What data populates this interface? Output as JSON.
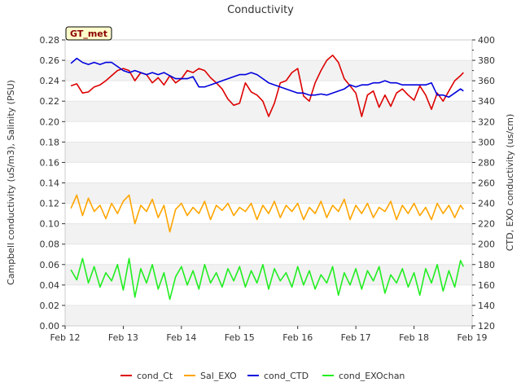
{
  "chart_data": {
    "type": "line",
    "title": "Conductivity",
    "station_label": "GT_met",
    "ylabel_left": "Campbell conductivity (uS/m3), Salinity (PSU)",
    "ylabel_right": "CTD, EXO conductivity (us/cm)",
    "xlim": [
      0,
      7
    ],
    "x_ticks": [
      {
        "x": 0,
        "label": "Feb 12"
      },
      {
        "x": 1,
        "label": "Feb 13"
      },
      {
        "x": 2,
        "label": "Feb 14"
      },
      {
        "x": 3,
        "label": "Feb 15"
      },
      {
        "x": 4,
        "label": "Feb 16"
      },
      {
        "x": 5,
        "label": "Feb 17"
      },
      {
        "x": 6,
        "label": "Feb 18"
      },
      {
        "x": 7,
        "label": "Feb 19"
      }
    ],
    "ylim_left": [
      0,
      0.28
    ],
    "y_ticks_left": [
      0.0,
      0.02,
      0.04,
      0.06,
      0.08,
      0.1,
      0.12,
      0.14,
      0.16,
      0.18,
      0.2,
      0.22,
      0.24,
      0.26,
      0.28
    ],
    "ylim_right": [
      120,
      400
    ],
    "y_ticks_right": [
      120,
      140,
      160,
      180,
      200,
      220,
      240,
      260,
      280,
      300,
      320,
      340,
      360,
      380,
      400
    ],
    "grid": "horizontal bands",
    "legend_position": "bottom",
    "series": [
      {
        "name": "cond_Ct",
        "color": "#dd0000",
        "axis": "left",
        "x": [
          0.1,
          0.2,
          0.3,
          0.4,
          0.5,
          0.6,
          0.7,
          0.8,
          0.9,
          1.0,
          1.1,
          1.2,
          1.3,
          1.4,
          1.5,
          1.6,
          1.7,
          1.8,
          1.9,
          2.0,
          2.1,
          2.2,
          2.3,
          2.4,
          2.5,
          2.6,
          2.7,
          2.8,
          2.9,
          3.0,
          3.1,
          3.2,
          3.3,
          3.4,
          3.5,
          3.6,
          3.7,
          3.8,
          3.9,
          4.0,
          4.1,
          4.2,
          4.3,
          4.4,
          4.5,
          4.6,
          4.7,
          4.8,
          4.9,
          5.0,
          5.1,
          5.2,
          5.3,
          5.4,
          5.5,
          5.6,
          5.7,
          5.8,
          5.9,
          6.0,
          6.1,
          6.2,
          6.3,
          6.4,
          6.5,
          6.6,
          6.7,
          6.8,
          6.85
        ],
        "y": [
          0.235,
          0.237,
          0.228,
          0.229,
          0.234,
          0.236,
          0.24,
          0.245,
          0.25,
          0.252,
          0.25,
          0.24,
          0.248,
          0.246,
          0.238,
          0.243,
          0.236,
          0.245,
          0.238,
          0.242,
          0.25,
          0.248,
          0.252,
          0.25,
          0.243,
          0.238,
          0.232,
          0.222,
          0.216,
          0.218,
          0.238,
          0.229,
          0.226,
          0.22,
          0.205,
          0.218,
          0.238,
          0.24,
          0.248,
          0.252,
          0.225,
          0.22,
          0.238,
          0.25,
          0.26,
          0.265,
          0.258,
          0.242,
          0.235,
          0.228,
          0.205,
          0.226,
          0.23,
          0.214,
          0.226,
          0.215,
          0.228,
          0.232,
          0.226,
          0.221,
          0.235,
          0.226,
          0.212,
          0.228,
          0.22,
          0.23,
          0.24,
          0.245,
          0.248
        ]
      },
      {
        "name": "Sal_EXO",
        "color": "#ffa500",
        "axis": "left",
        "x": [
          0.1,
          0.2,
          0.3,
          0.4,
          0.5,
          0.6,
          0.7,
          0.8,
          0.9,
          1.0,
          1.1,
          1.2,
          1.3,
          1.4,
          1.5,
          1.6,
          1.7,
          1.8,
          1.9,
          2.0,
          2.1,
          2.2,
          2.3,
          2.4,
          2.5,
          2.6,
          2.7,
          2.8,
          2.9,
          3.0,
          3.1,
          3.2,
          3.3,
          3.4,
          3.5,
          3.6,
          3.7,
          3.8,
          3.9,
          4.0,
          4.1,
          4.2,
          4.3,
          4.4,
          4.5,
          4.6,
          4.7,
          4.8,
          4.9,
          5.0,
          5.1,
          5.2,
          5.3,
          5.4,
          5.5,
          5.6,
          5.7,
          5.8,
          5.9,
          6.0,
          6.1,
          6.2,
          6.3,
          6.4,
          6.5,
          6.6,
          6.7,
          6.8,
          6.85
        ],
        "y": [
          0.115,
          0.128,
          0.108,
          0.125,
          0.112,
          0.118,
          0.105,
          0.12,
          0.11,
          0.122,
          0.128,
          0.1,
          0.118,
          0.112,
          0.124,
          0.106,
          0.118,
          0.092,
          0.114,
          0.12,
          0.108,
          0.116,
          0.11,
          0.122,
          0.104,
          0.118,
          0.113,
          0.12,
          0.108,
          0.116,
          0.112,
          0.12,
          0.104,
          0.118,
          0.11,
          0.122,
          0.106,
          0.118,
          0.112,
          0.12,
          0.104,
          0.116,
          0.11,
          0.122,
          0.106,
          0.118,
          0.112,
          0.124,
          0.104,
          0.118,
          0.11,
          0.12,
          0.106,
          0.116,
          0.112,
          0.122,
          0.104,
          0.118,
          0.11,
          0.12,
          0.108,
          0.116,
          0.104,
          0.12,
          0.11,
          0.118,
          0.106,
          0.118,
          0.114
        ]
      },
      {
        "name": "cond_CTD",
        "color": "#0000dd",
        "axis": "right",
        "x": [
          0.1,
          0.2,
          0.3,
          0.4,
          0.5,
          0.6,
          0.7,
          0.8,
          0.9,
          1.0,
          1.1,
          1.2,
          1.3,
          1.4,
          1.5,
          1.6,
          1.7,
          1.8,
          1.9,
          2.0,
          2.1,
          2.2,
          2.3,
          2.4,
          2.5,
          2.6,
          2.7,
          2.8,
          2.9,
          3.0,
          3.1,
          3.2,
          3.3,
          3.4,
          3.5,
          3.6,
          3.7,
          3.8,
          3.9,
          4.0,
          4.1,
          4.2,
          4.3,
          4.4,
          4.5,
          4.6,
          4.7,
          4.8,
          4.9,
          5.0,
          5.1,
          5.2,
          5.3,
          5.4,
          5.5,
          5.6,
          5.7,
          5.8,
          5.9,
          6.0,
          6.1,
          6.2,
          6.3,
          6.4,
          6.5,
          6.6,
          6.7,
          6.8,
          6.85
        ],
        "y": [
          377,
          382,
          378,
          376,
          378,
          376,
          378,
          378,
          374,
          370,
          368,
          370,
          368,
          366,
          368,
          366,
          368,
          365,
          362,
          362,
          362,
          364,
          354,
          354,
          356,
          358,
          360,
          362,
          364,
          366,
          366,
          368,
          366,
          362,
          358,
          356,
          354,
          352,
          350,
          348,
          348,
          346,
          346,
          347,
          346,
          348,
          350,
          352,
          356,
          354,
          356,
          356,
          358,
          358,
          360,
          358,
          358,
          356,
          356,
          356,
          356,
          356,
          358,
          346,
          346,
          344,
          348,
          352,
          350
        ]
      },
      {
        "name": "cond_EXOchan",
        "color": "#22ee22",
        "axis": "right",
        "x": [
          0.1,
          0.2,
          0.3,
          0.4,
          0.5,
          0.6,
          0.7,
          0.8,
          0.9,
          1.0,
          1.1,
          1.2,
          1.3,
          1.4,
          1.5,
          1.6,
          1.7,
          1.8,
          1.9,
          2.0,
          2.1,
          2.2,
          2.3,
          2.4,
          2.5,
          2.6,
          2.7,
          2.8,
          2.9,
          3.0,
          3.1,
          3.2,
          3.3,
          3.4,
          3.5,
          3.6,
          3.7,
          3.8,
          3.9,
          4.0,
          4.1,
          4.2,
          4.3,
          4.4,
          4.5,
          4.6,
          4.7,
          4.8,
          4.9,
          5.0,
          5.1,
          5.2,
          5.3,
          5.4,
          5.5,
          5.6,
          5.7,
          5.8,
          5.9,
          6.0,
          6.1,
          6.2,
          6.3,
          6.4,
          6.5,
          6.6,
          6.7,
          6.8,
          6.85
        ],
        "y": [
          175,
          165,
          186,
          162,
          178,
          158,
          172,
          164,
          180,
          155,
          186,
          148,
          176,
          162,
          180,
          156,
          172,
          146,
          168,
          178,
          160,
          174,
          156,
          180,
          162,
          172,
          158,
          176,
          164,
          178,
          158,
          174,
          162,
          180,
          156,
          176,
          164,
          172,
          158,
          178,
          160,
          174,
          156,
          170,
          162,
          178,
          150,
          172,
          160,
          176,
          156,
          174,
          164,
          178,
          152,
          170,
          162,
          176,
          158,
          172,
          150,
          176,
          162,
          180,
          154,
          174,
          158,
          184,
          178
        ]
      }
    ]
  }
}
